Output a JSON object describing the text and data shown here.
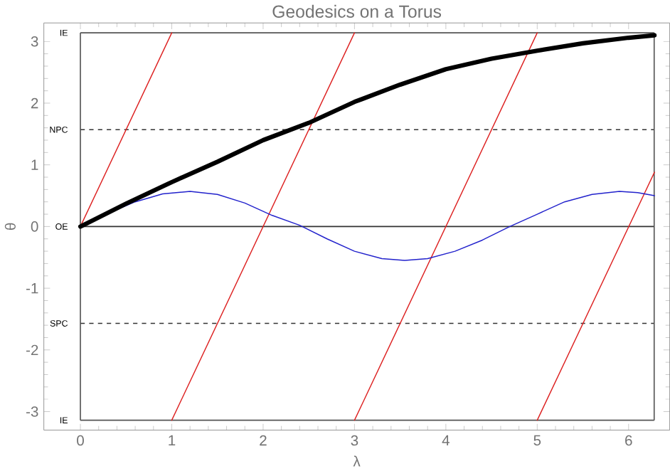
{
  "chart_data": {
    "type": "line",
    "title": "Geodesics on a Torus",
    "xlabel": "λ",
    "ylabel": "θ",
    "xlim": [
      -0.4,
      6.45
    ],
    "ylim": [
      -3.3,
      3.3
    ],
    "xticks": [
      0,
      1,
      2,
      3,
      4,
      5,
      6
    ],
    "yticks": [
      -3,
      -2,
      -1,
      0,
      1,
      2,
      3
    ],
    "grid": false,
    "marker": "none",
    "line_style": "solid",
    "series": [
      {
        "color": "#dd2222",
        "x": [
          0,
          1,
          null,
          1,
          3,
          null,
          3,
          5,
          null,
          5,
          6.283
        ],
        "values": [
          0,
          3.14,
          null,
          -3.14,
          3.14,
          null,
          -3.14,
          3.14,
          null,
          -3.14,
          0.88
        ]
      },
      {
        "color": "#2222cc",
        "x": [
          0,
          0.3,
          0.6,
          0.9,
          1.2,
          1.5,
          1.8,
          2.1,
          2.4,
          2.7,
          3.0,
          3.3,
          3.55,
          3.8,
          4.1,
          4.4,
          4.7,
          5.0,
          5.3,
          5.6,
          5.9,
          6.1,
          6.283
        ],
        "values": [
          0,
          0.21,
          0.4,
          0.53,
          0.57,
          0.52,
          0.38,
          0.18,
          0.02,
          -0.2,
          -0.4,
          -0.52,
          -0.55,
          -0.52,
          -0.4,
          -0.22,
          0,
          0.2,
          0.4,
          0.52,
          0.57,
          0.55,
          0.5
        ]
      },
      {
        "color": "#000000",
        "x": [
          0,
          0.5,
          1,
          1.5,
          2,
          2.5,
          3,
          3.5,
          4,
          4.5,
          5,
          5.5,
          6,
          6.283
        ],
        "values": [
          0,
          0.37,
          0.72,
          1.05,
          1.4,
          1.68,
          2.02,
          2.3,
          2.55,
          2.72,
          2.85,
          2.97,
          3.06,
          3.1
        ]
      }
    ],
    "ref_lines": [
      {
        "axis": "y",
        "value": 3.14,
        "label": "IE",
        "color": "#555555",
        "line_style": "solid"
      },
      {
        "axis": "y",
        "value": 1.57,
        "label": "NPC",
        "color": "#333333",
        "line_style": "dashed"
      },
      {
        "axis": "y",
        "value": 0,
        "label": "OE",
        "color": "#333333",
        "line_style": "solid"
      },
      {
        "axis": "y",
        "value": -1.57,
        "label": "SPC",
        "color": "#333333",
        "line_style": "dashed"
      },
      {
        "axis": "y",
        "value": -3.14,
        "label": "IE",
        "color": "#555555",
        "line_style": "solid"
      },
      {
        "axis": "x",
        "value": 0,
        "color": "#555555",
        "line_style": "solid"
      },
      {
        "axis": "x",
        "value": 6.28,
        "color": "#555555",
        "line_style": "solid"
      }
    ]
  }
}
